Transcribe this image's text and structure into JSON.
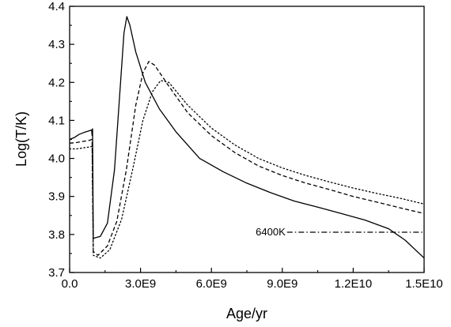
{
  "chart_data": {
    "type": "line",
    "title": "",
    "xlabel": "Age/yr",
    "ylabel": "Log(T/K)",
    "xlim": [
      0,
      15000000000
    ],
    "ylim": [
      3.7,
      4.4
    ],
    "grid": false,
    "x_ticks": [
      {
        "value": 0,
        "label": "0.0"
      },
      {
        "value": 3000000000,
        "label": "3.0E9"
      },
      {
        "value": 6000000000,
        "label": "6.0E9"
      },
      {
        "value": 9000000000,
        "label": "9.0E9"
      },
      {
        "value": 12000000000,
        "label": "1.2E10"
      },
      {
        "value": 15000000000,
        "label": "1.5E10"
      }
    ],
    "y_ticks": [
      {
        "value": 3.7,
        "label": "3.7"
      },
      {
        "value": 3.8,
        "label": "3.8"
      },
      {
        "value": 3.9,
        "label": "3.9"
      },
      {
        "value": 4.0,
        "label": "4.0"
      },
      {
        "value": 4.1,
        "label": "4.1"
      },
      {
        "value": 4.2,
        "label": "4.2"
      },
      {
        "value": 4.3,
        "label": "4.3"
      },
      {
        "value": 4.4,
        "label": "4.4"
      }
    ],
    "series": [
      {
        "style": "solid",
        "x": [
          0,
          200000000,
          400000000,
          600000000,
          800000000,
          930000000,
          950000000,
          970000000,
          1000000000,
          1300000000,
          1600000000,
          1900000000,
          2100000000,
          2300000000,
          2420000000,
          2550000000,
          2800000000,
          3200000000,
          3800000000,
          4500000000,
          5500000000,
          6500000000,
          7500000000,
          8500000000,
          9500000000,
          10500000000,
          11500000000,
          12500000000,
          13500000000,
          14200000000,
          15000000000
        ],
        "y": [
          4.05,
          4.055,
          4.063,
          4.068,
          4.072,
          4.075,
          4.06,
          4.078,
          3.79,
          3.795,
          3.83,
          3.97,
          4.15,
          4.33,
          4.373,
          4.35,
          4.28,
          4.2,
          4.13,
          4.07,
          4.0,
          3.965,
          3.935,
          3.91,
          3.888,
          3.872,
          3.855,
          3.838,
          3.815,
          3.785,
          3.738
        ]
      },
      {
        "style": "dashed",
        "x": [
          0,
          300000000,
          600000000,
          850000000,
          950000000,
          1000000000,
          1200000000,
          1600000000,
          2000000000,
          2400000000,
          2800000000,
          3100000000,
          3350000000,
          3600000000,
          4200000000,
          5000000000,
          6000000000,
          7000000000,
          8000000000,
          9000000000,
          10000000000,
          11000000000,
          12000000000,
          13000000000,
          14000000000,
          15000000000
        ],
        "y": [
          4.04,
          4.042,
          4.045,
          4.048,
          4.05,
          3.755,
          3.745,
          3.77,
          3.835,
          3.97,
          4.14,
          4.225,
          4.255,
          4.245,
          4.19,
          4.12,
          4.06,
          4.015,
          3.98,
          3.955,
          3.935,
          3.918,
          3.9,
          3.885,
          3.87,
          3.855
        ]
      },
      {
        "style": "dotted",
        "x": [
          0,
          300000000,
          600000000,
          850000000,
          950000000,
          1000000000,
          1300000000,
          1700000000,
          2200000000,
          2700000000,
          3100000000,
          3500000000,
          3850000000,
          4200000000,
          5000000000,
          6000000000,
          7000000000,
          8000000000,
          9000000000,
          10000000000,
          11000000000,
          12000000000,
          13000000000,
          14000000000,
          15000000000
        ],
        "y": [
          4.025,
          4.025,
          4.028,
          4.03,
          4.032,
          3.745,
          3.738,
          3.76,
          3.84,
          3.98,
          4.1,
          4.175,
          4.205,
          4.2,
          4.14,
          4.08,
          4.035,
          4.0,
          3.975,
          3.955,
          3.938,
          3.922,
          3.908,
          3.895,
          3.88
        ]
      },
      {
        "style": "dash-dot",
        "x": [
          9200000000,
          15000000000
        ],
        "y": [
          3.806,
          3.806
        ]
      }
    ],
    "annotations": [
      {
        "text": "6400K",
        "x": 9200000000,
        "y": 3.806
      }
    ]
  }
}
